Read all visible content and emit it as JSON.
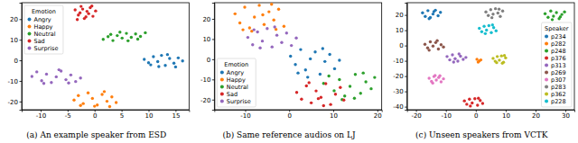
{
  "chart_data": [
    {
      "type": "scatter",
      "title": "(a) An example speaker from ESD",
      "legend_title": "Emotion",
      "legend": "upper left",
      "xlim": [
        -13.5,
        17.5
      ],
      "ylim": [
        -24,
        28
      ],
      "xticks": [
        -10,
        -5,
        0,
        5,
        10,
        15
      ],
      "yticks": [
        -20,
        -10,
        0,
        10,
        20
      ],
      "series": [
        {
          "name": "Angry",
          "color": "#1f77b4",
          "x": [
            9.2,
            10.0,
            10.9,
            11.7,
            12.4,
            13.1,
            13.9,
            14.7,
            15.5,
            16.3,
            11.9,
            13.5,
            10.4,
            15.0
          ],
          "y": [
            0.5,
            -1.2,
            1.8,
            -0.6,
            2.4,
            -2.5,
            0.9,
            -1.4,
            1.2,
            -0.3,
            -3.0,
            2.8,
            -2.2,
            -3.2
          ]
        },
        {
          "name": "Happy",
          "color": "#ff7f0e",
          "x": [
            -3.8,
            -3.0,
            -2.1,
            -1.2,
            -0.4,
            0.5,
            1.4,
            2.3,
            3.2,
            4.0,
            0.0,
            1.8,
            -2.6,
            2.8
          ],
          "y": [
            -19.3,
            -17.1,
            -21.0,
            -15.8,
            -18.5,
            -21.7,
            -16.6,
            -19.9,
            -17.8,
            -20.5,
            -22.3,
            -15.2,
            -21.9,
            -22.5
          ]
        },
        {
          "name": "Neutral",
          "color": "#2ca02c",
          "x": [
            1.6,
            2.5,
            3.4,
            4.2,
            5.1,
            5.9,
            6.8,
            7.6,
            8.5,
            9.4,
            3.0,
            6.2,
            8.0,
            4.7
          ],
          "y": [
            10.2,
            11.5,
            9.6,
            12.0,
            10.8,
            13.1,
            11.2,
            12.8,
            11.6,
            13.4,
            12.6,
            9.5,
            10.3,
            13.7
          ]
        },
        {
          "name": "Sad",
          "color": "#d62728",
          "x": [
            -3.6,
            -3.0,
            -2.5,
            -1.9,
            -1.4,
            -0.8,
            -0.3,
            -3.2,
            -2.2,
            -1.1,
            -0.5,
            -1.6,
            -2.7,
            0.2
          ],
          "y": [
            24.5,
            22.0,
            26.2,
            20.3,
            23.8,
            25.6,
            21.4,
            19.8,
            24.9,
            22.7,
            26.4,
            21.1,
            23.1,
            24.0
          ]
        },
        {
          "name": "Surprise",
          "color": "#9467bd",
          "x": [
            -11.6,
            -10.7,
            -9.8,
            -8.9,
            -8.0,
            -7.1,
            -6.2,
            -5.3,
            -4.4,
            -3.5,
            -2.6,
            -9.4,
            -6.6,
            -4.8
          ],
          "y": [
            -7.8,
            -5.6,
            -9.9,
            -6.7,
            -10.8,
            -8.0,
            -5.2,
            -9.4,
            -7.1,
            -10.3,
            -8.6,
            -11.2,
            -4.6,
            -11.0
          ]
        }
      ]
    },
    {
      "type": "scatter",
      "title": "(b) Same reference audios on LJ",
      "legend_title": "Emotion",
      "legend": "lower left",
      "xlim": [
        -17,
        21
      ],
      "ylim": [
        -25,
        28
      ],
      "xticks": [
        -10,
        0,
        10,
        20
      ],
      "yticks": [
        -20,
        -10,
        0,
        10,
        20
      ],
      "series": [
        {
          "name": "Angry",
          "color": "#1f77b4",
          "x": [
            0.3,
            1.4,
            2.6,
            3.7,
            4.8,
            5.9,
            7.0,
            8.1,
            9.2,
            10.3,
            11.4,
            4.2,
            7.6,
            2.0
          ],
          "y": [
            1.5,
            -2.6,
            4.8,
            -5.3,
            0.2,
            3.6,
            -7.4,
            -1.1,
            2.4,
            -4.7,
            -0.5,
            -8.9,
            5.3,
            -6.8
          ]
        },
        {
          "name": "Happy",
          "color": "#ff7f0e",
          "x": [
            -12.3,
            -11.2,
            -10.1,
            -9.0,
            -7.9,
            -6.8,
            -5.7,
            -4.6,
            -3.5,
            -2.4,
            -1.2,
            -8.5,
            -6.0,
            -3.0,
            -10.5,
            -4.0
          ],
          "y": [
            22.5,
            18.0,
            25.8,
            15.5,
            20.9,
            26.7,
            17.2,
            23.5,
            19.4,
            24.8,
            16.3,
            13.9,
            22.0,
            14.8,
            14.6,
            27.2
          ]
        },
        {
          "name": "Neutral",
          "color": "#2ca02c",
          "x": [
            7.8,
            9.0,
            10.2,
            11.4,
            12.6,
            13.8,
            15.0,
            16.2,
            17.4,
            18.6,
            19.4,
            12.0,
            14.8,
            16.8
          ],
          "y": [
            -12.0,
            -8.3,
            -15.6,
            -10.1,
            -18.2,
            -13.4,
            -7.5,
            -16.9,
            -11.2,
            -14.6,
            -9.0,
            -20.0,
            -19.3,
            -6.8
          ]
        },
        {
          "name": "Sad",
          "color": "#d62728",
          "x": [
            1.7,
            2.8,
            3.9,
            5.0,
            6.1,
            7.2,
            8.3,
            9.4,
            10.5,
            11.6,
            12.4,
            4.5,
            7.8,
            6.6
          ],
          "y": [
            -16.4,
            -19.8,
            -13.2,
            -21.6,
            -15.7,
            -18.9,
            -12.1,
            -22.4,
            -17.3,
            -14.0,
            -20.2,
            -11.6,
            -23.0,
            -19.5
          ]
        },
        {
          "name": "Surprise",
          "color": "#9467bd",
          "x": [
            -9.4,
            -8.3,
            -7.2,
            -6.1,
            -5.0,
            -3.9,
            -2.8,
            -1.7,
            -0.6,
            0.5,
            1.6,
            -6.6,
            -3.3,
            -8.0
          ],
          "y": [
            10.8,
            7.2,
            13.5,
            9.0,
            15.2,
            6.1,
            11.9,
            8.3,
            13.0,
            6.8,
            10.5,
            5.6,
            16.0,
            14.6
          ]
        }
      ]
    },
    {
      "type": "scatter",
      "title": "(c) Unseen speakers from VCTK",
      "legend_title": "Speaker",
      "legend": "lower right",
      "xlim": [
        -23,
        33
      ],
      "ylim": [
        -42,
        28
      ],
      "xticks": [
        -20,
        -10,
        0,
        10,
        20,
        30
      ],
      "yticks": [
        -40,
        -30,
        -20,
        -10,
        0,
        10,
        20
      ],
      "series": [
        {
          "name": "p234",
          "color": "#1f77b4",
          "x": [
            -17.8,
            -16.9,
            -16.0,
            -15.2,
            -14.3,
            -13.5,
            -12.6,
            -11.8,
            -15.6,
            -14.0
          ],
          "y": [
            21.4,
            19.0,
            22.8,
            18.3,
            20.6,
            23.1,
            19.5,
            21.7,
            17.6,
            22.2
          ]
        },
        {
          "name": "p282",
          "color": "#ff7f0e",
          "x": [
            0.4,
            1.2,
            0.8,
            1.7
          ],
          "y": [
            -9.0,
            -10.1,
            -10.8,
            -9.4
          ]
        },
        {
          "name": "p248",
          "color": "#2ca02c",
          "x": [
            23.2,
            24.2,
            25.1,
            26.0,
            27.0,
            27.9,
            28.8,
            29.7,
            25.6,
            28.3
          ],
          "y": [
            20.8,
            18.4,
            22.6,
            19.2,
            21.5,
            17.6,
            20.3,
            22.0,
            16.9,
            18.8
          ]
        },
        {
          "name": "p376",
          "color": "#d62728",
          "x": [
            -3.8,
            -3.0,
            -2.1,
            -1.2,
            -0.3,
            0.6,
            1.5,
            2.3,
            -1.8,
            0.9
          ],
          "y": [
            -36.2,
            -38.4,
            -35.1,
            -37.6,
            -34.8,
            -39.1,
            -36.0,
            -37.9,
            -39.6,
            -34.5
          ]
        },
        {
          "name": "p313",
          "color": "#9467bd",
          "x": [
            -9.6,
            -8.7,
            -7.8,
            -6.9,
            -6.0,
            -5.1,
            -4.2,
            -3.3,
            -7.4,
            -5.6
          ],
          "y": [
            -7.2,
            -9.4,
            -6.1,
            -8.6,
            -10.2,
            -7.0,
            -9.1,
            -7.8,
            -10.8,
            -5.5
          ]
        },
        {
          "name": "p269",
          "color": "#8c564b",
          "x": [
            -17.0,
            -16.1,
            -15.2,
            -14.3,
            -13.4,
            -12.5,
            -11.6,
            -10.8,
            -15.6,
            -12.9
          ],
          "y": [
            0.8,
            -1.6,
            2.4,
            -0.4,
            1.9,
            -2.3,
            0.5,
            -1.0,
            -3.1,
            3.2
          ]
        },
        {
          "name": "p307",
          "color": "#e377c2",
          "x": [
            -15.6,
            -14.8,
            -14.0,
            -13.2,
            -12.4,
            -11.6,
            -10.8,
            -14.4,
            -12.0,
            -13.6
          ],
          "y": [
            -21.4,
            -23.5,
            -20.3,
            -22.6,
            -20.9,
            -23.8,
            -21.8,
            -24.6,
            -19.8,
            -19.6
          ]
        },
        {
          "name": "p283",
          "color": "#7f7f7f",
          "x": [
            3.4,
            4.2,
            5.0,
            5.8,
            6.6,
            7.4,
            8.2,
            9.0,
            5.4,
            7.8
          ],
          "y": [
            22.0,
            19.6,
            23.4,
            20.5,
            24.1,
            21.2,
            19.0,
            22.6,
            18.2,
            23.8
          ]
        },
        {
          "name": "p362",
          "color": "#bcbd22",
          "x": [
            5.8,
            6.5,
            7.2,
            7.9,
            8.6,
            9.3,
            10.0,
            7.0,
            8.9,
            9.6
          ],
          "y": [
            -8.4,
            -10.3,
            -7.2,
            -9.6,
            -6.8,
            -10.9,
            -8.1,
            -11.2,
            -11.6,
            -6.5
          ]
        },
        {
          "name": "p228",
          "color": "#17becf",
          "x": [
            1.2,
            2.0,
            2.8,
            3.6,
            4.4,
            5.2,
            6.0,
            6.8,
            3.2,
            5.6
          ],
          "y": [
            11.2,
            9.0,
            12.6,
            10.1,
            13.0,
            8.4,
            11.7,
            9.6,
            7.8,
            13.4
          ]
        }
      ]
    }
  ]
}
